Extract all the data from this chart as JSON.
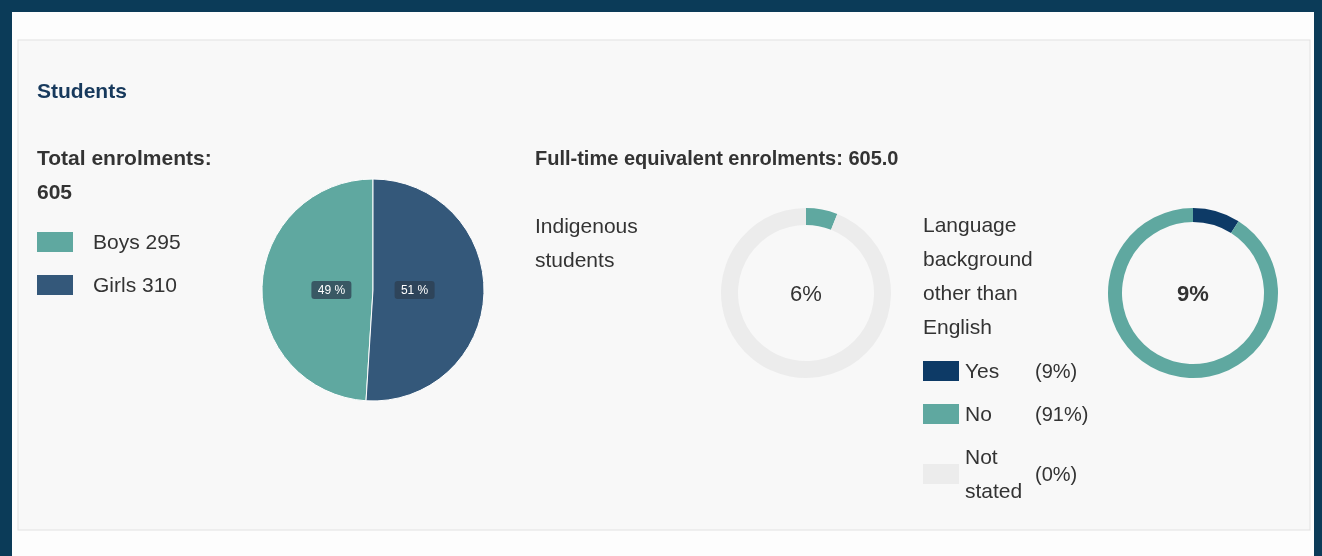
{
  "chart_data": [
    {
      "type": "other",
      "title": "Students"
    },
    {
      "type": "pie",
      "title": "Total enrolments:",
      "subtitle": "605",
      "categories": [
        "Boys 295",
        "Girls 310"
      ],
      "values": [
        49,
        51
      ],
      "colors": [
        "#5fa8a0",
        "#34587a"
      ],
      "value_labels": [
        "49 %",
        "51 %"
      ],
      "legend": "left"
    },
    {
      "type": "other",
      "title": "Full-time equivalent enrolments: 605.0"
    },
    {
      "type": "donut",
      "title": "Indigenous students",
      "categories": [
        null,
        null
      ],
      "values": [
        6,
        94
      ],
      "colors": [
        "#5fa8a0",
        "#ececec"
      ],
      "annotations": [
        "6%"
      ],
      "legend": false
    },
    {
      "type": "donut",
      "title": "Language background other than English",
      "categories": [
        "Yes",
        "No",
        "Not stated"
      ],
      "values": [
        9,
        91,
        0
      ],
      "colors": [
        "#0d3a66",
        "#5fa8a0",
        "#ececec"
      ],
      "value_labels": [
        "(9%)",
        "(91%)",
        "(0%)"
      ],
      "annotations": [
        "9%"
      ],
      "legend": "left"
    }
  ]
}
